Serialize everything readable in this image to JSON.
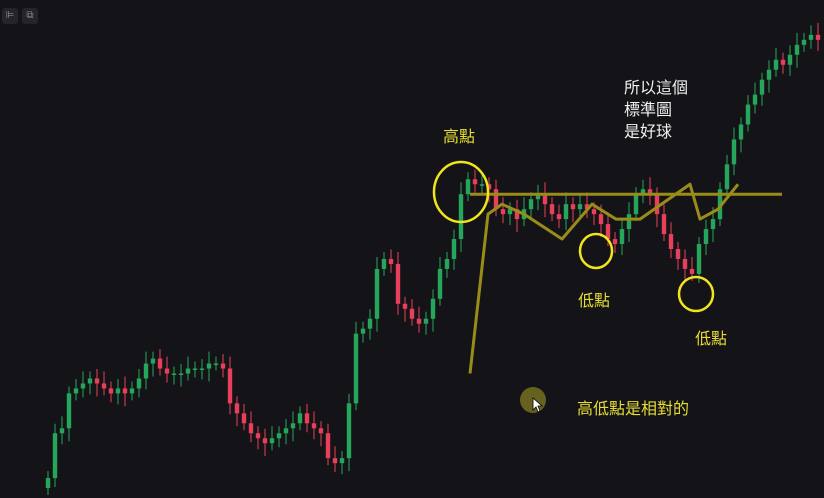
{
  "toolbar": {
    "left_icon": "chart-bars-icon",
    "right_icon": "chart-layout-icon"
  },
  "annotations": {
    "high_label": "高點",
    "low_label_1": "低點",
    "low_label_2": "低點",
    "relative_note": "高低點是相對的",
    "standard_note": [
      "所以這個",
      "標準圖",
      "是好球"
    ]
  },
  "colors": {
    "background": "#141418",
    "up_candle": "#26a65b",
    "down_candle": "#e8405a",
    "annotation_line": "#9a8c19",
    "circle": "#f2e41c",
    "text_yellow": "#e6dc33",
    "text_white": "#f0f0f0"
  },
  "chart_data": {
    "type": "candlestick",
    "title": "",
    "xlabel": "",
    "ylabel": "",
    "grid": false,
    "ylim": [
      0,
      100
    ],
    "close": [
      4,
      13,
      14,
      21,
      22,
      23,
      24,
      23,
      22,
      21,
      22,
      21,
      22,
      24,
      27,
      28,
      26,
      25,
      25,
      25,
      26,
      26,
      26,
      27,
      27,
      26,
      19,
      17,
      15,
      13,
      12,
      11,
      12,
      13,
      14,
      15,
      17,
      15,
      14,
      13,
      8,
      7,
      8,
      19,
      33,
      34,
      36,
      46,
      48,
      47,
      39,
      38,
      36,
      35,
      36,
      40,
      46,
      48,
      52,
      61,
      64,
      63,
      63,
      62,
      58,
      57,
      58,
      56,
      58,
      60,
      61,
      59,
      57,
      56,
      59,
      58,
      59,
      58,
      57,
      55,
      52,
      51,
      54,
      57,
      61,
      62,
      61,
      57,
      53,
      50,
      48,
      46,
      45,
      51,
      54,
      56,
      62,
      67,
      72,
      75,
      79,
      81,
      84,
      86,
      88,
      87,
      89,
      91,
      92,
      93,
      92
    ],
    "low_points_sequence": [
      25,
      57,
      59,
      57,
      52,
      59,
      56,
      56,
      63,
      56,
      58,
      63
    ],
    "resistance_level": 61
  }
}
